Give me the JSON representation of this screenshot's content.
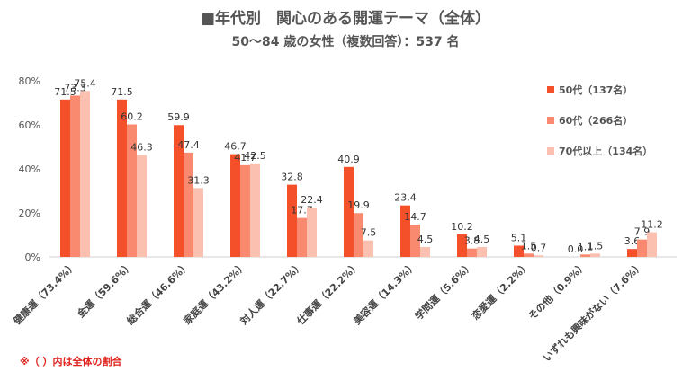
{
  "title": "■年代別　関心のある開運テーマ（全体）",
  "subtitle": "50〜84 歳の女性（複数回答）：537 名",
  "note": "※（ ）内は全体の割合",
  "chart_data": {
    "type": "bar",
    "title": "■年代別　関心のある開運テーマ（全体）",
    "subtitle": "50〜84 歳の女性（複数回答）：537 名",
    "xlabel": "",
    "ylabel": "",
    "ylim": [
      0,
      80
    ],
    "yticks": [
      "0%",
      "20%",
      "40%",
      "60%",
      "80%"
    ],
    "grid": false,
    "legend_position": "top-right",
    "categories": [
      "健康運（73.4%）",
      "金運（59.6%）",
      "総合運（46.6%）",
      "家庭運（43.2%）",
      "対人運（22.7%）",
      "仕事運（22.2%）",
      "美容運（14.3%）",
      "学問運（5.6%）",
      "恋愛運（2.2%）",
      "その他（0.9%）",
      "いずれも興味がない（7.6%）"
    ],
    "series": [
      {
        "name": "50代（137名）",
        "color": "#f4502a",
        "values": [
          71.5,
          71.5,
          59.9,
          46.7,
          32.8,
          40.9,
          23.4,
          10.2,
          5.1,
          0.0,
          3.6
        ],
        "labels": [
          "71.5",
          "71.5",
          "59.9",
          "46.7",
          "32.8",
          "40.9",
          "23.4",
          "10.2",
          "5.1",
          "0.0",
          "3.6"
        ]
      },
      {
        "name": "60代（266名）",
        "color": "#f98a70",
        "values": [
          73.3,
          60.2,
          47.4,
          41.7,
          17.7,
          19.9,
          14.7,
          3.8,
          1.5,
          1.1,
          7.9
        ],
        "labels": [
          "73.3",
          "60.2",
          "47.4",
          "41.7",
          "17.7",
          "19.9",
          "14.7",
          "3.8",
          "1.5",
          "1.1",
          "7.9"
        ]
      },
      {
        "name": "70代以上（134名）",
        "color": "#fbc0b0",
        "values": [
          75.4,
          46.3,
          31.3,
          42.5,
          22.4,
          7.5,
          4.5,
          4.5,
          0.7,
          1.5,
          11.2
        ],
        "labels": [
          "75.4",
          "46.3",
          "31.3",
          "42.5",
          "22.4",
          "7.5",
          "4.5",
          "4.5",
          "0.7",
          "1.5",
          "11.2"
        ]
      }
    ]
  }
}
